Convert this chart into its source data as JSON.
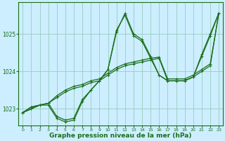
{
  "background_color": "#cceeff",
  "plot_bg_color": "#cceeff",
  "grid_color": "#99ccbb",
  "line_color": "#1a6e1a",
  "xlabel": "Graphe pression niveau de la mer (hPa)",
  "xlabel_fontsize": 6.5,
  "xlim": [
    -0.5,
    23.5
  ],
  "ylim": [
    1022.55,
    1025.85
  ],
  "yticks": [
    1023,
    1024,
    1025
  ],
  "xticks": [
    0,
    1,
    2,
    3,
    4,
    5,
    6,
    7,
    8,
    9,
    10,
    11,
    12,
    13,
    14,
    15,
    16,
    17,
    18,
    19,
    20,
    21,
    22,
    23
  ],
  "lines": [
    {
      "x": [
        0,
        1,
        2,
        3,
        4,
        5,
        6,
        7,
        8,
        9,
        10,
        11,
        12,
        13,
        14,
        15,
        16,
        17,
        18,
        19,
        20,
        21,
        22,
        23
      ],
      "y": [
        1022.9,
        1023.05,
        1023.1,
        1023.15,
        1023.3,
        1023.45,
        1023.55,
        1023.6,
        1023.7,
        1023.75,
        1023.9,
        1024.05,
        1024.15,
        1024.2,
        1024.25,
        1024.3,
        1024.35,
        1023.75,
        1023.75,
        1023.75,
        1023.85,
        1024.0,
        1024.15,
        1025.55
      ]
    },
    {
      "x": [
        0,
        1,
        2,
        3,
        4,
        5,
        6,
        7,
        8,
        9,
        10,
        11,
        12,
        13,
        14,
        15,
        16,
        17,
        18,
        19,
        20,
        21,
        22,
        23
      ],
      "y": [
        1022.9,
        1023.05,
        1023.1,
        1023.15,
        1023.35,
        1023.5,
        1023.6,
        1023.65,
        1023.75,
        1023.8,
        1023.95,
        1024.1,
        1024.2,
        1024.25,
        1024.3,
        1024.35,
        1024.38,
        1023.8,
        1023.8,
        1023.8,
        1023.9,
        1024.05,
        1024.2,
        1025.55
      ]
    },
    {
      "x": [
        0,
        1,
        2,
        3,
        4,
        5,
        6,
        7,
        8,
        9,
        10,
        11,
        12,
        13,
        14,
        15,
        16,
        17,
        18,
        19,
        20,
        21,
        22,
        23
      ],
      "y": [
        1022.9,
        1023.0,
        1023.1,
        1023.1,
        1022.75,
        1022.65,
        1022.7,
        1023.2,
        1023.5,
        1023.75,
        1024.05,
        1025.05,
        1025.55,
        1025.0,
        1024.85,
        1024.4,
        1023.9,
        1023.75,
        1023.75,
        1023.75,
        1023.85,
        1024.4,
        1024.95,
        1025.55
      ]
    },
    {
      "x": [
        0,
        1,
        2,
        3,
        4,
        5,
        6,
        7,
        8,
        9,
        10,
        11,
        12,
        13,
        14,
        15,
        16,
        17,
        18,
        19,
        20,
        21,
        22,
        23
      ],
      "y": [
        1022.9,
        1023.0,
        1023.1,
        1023.15,
        1022.8,
        1022.7,
        1022.75,
        1023.25,
        1023.5,
        1023.75,
        1024.05,
        1025.1,
        1025.5,
        1024.95,
        1024.8,
        1024.35,
        1023.9,
        1023.75,
        1023.75,
        1023.75,
        1023.85,
        1024.45,
        1025.0,
        1025.55
      ]
    }
  ]
}
